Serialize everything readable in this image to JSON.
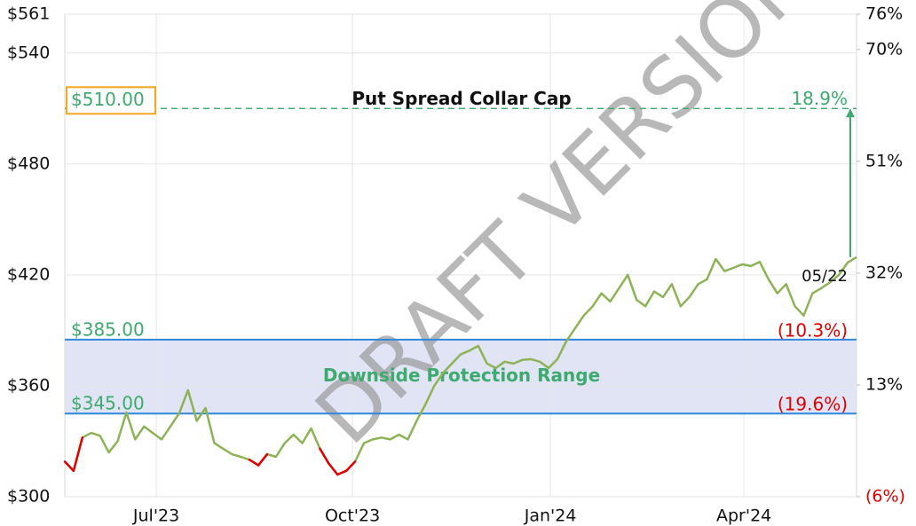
{
  "chart_data": {
    "type": "line",
    "watermark": "DRAFT VERSION",
    "series": [
      {
        "name": "Price",
        "color": "#8db356",
        "below_color": "#e00000",
        "values": [
          319,
          314,
          332,
          334.5,
          333,
          324,
          330,
          345.6,
          331,
          338,
          334.5,
          331,
          338,
          345,
          357.6,
          341,
          348,
          329,
          326,
          323,
          321.6,
          320,
          317,
          323,
          321.6,
          329,
          333.6,
          329,
          337,
          326,
          318,
          312,
          314,
          319,
          329,
          331,
          332,
          331,
          333.6,
          331,
          341,
          350,
          360,
          367,
          372,
          377,
          379,
          381.6,
          372,
          369.6,
          373,
          372,
          374,
          374.4,
          373,
          369.6,
          374.4,
          384,
          391,
          398,
          403,
          410,
          405.6,
          412.8,
          420,
          406.5,
          403,
          411,
          408,
          415,
          403,
          408,
          415,
          417.6,
          428.6,
          422,
          423.8,
          425.7,
          424.8,
          427,
          417.6,
          410,
          415,
          403,
          398,
          410,
          412.8,
          416,
          420,
          426.7,
          429.6
        ]
      }
    ],
    "last_label": "05/22",
    "xlim": [
      0,
      90
    ],
    "xticks": [
      {
        "value": 10.4,
        "label": "Jul'23"
      },
      {
        "value": 32.7,
        "label": "Oct'23"
      },
      {
        "value": 55.2,
        "label": "Jan'24"
      },
      {
        "value": 77.2,
        "label": "Apr'24"
      }
    ],
    "ylim": [
      300,
      561
    ],
    "yticks": [
      {
        "value": 300,
        "label": "$300"
      },
      {
        "value": 360,
        "label": "$360"
      },
      {
        "value": 420,
        "label": "$420"
      },
      {
        "value": 480,
        "label": "$480"
      },
      {
        "value": 540,
        "label": "$540"
      },
      {
        "value": 561,
        "label": "$561"
      }
    ],
    "y2lim": [
      -6,
      76
    ],
    "y2ticks": [
      {
        "value": -6,
        "label": "(6%)"
      },
      {
        "value": 13,
        "label": "13%"
      },
      {
        "value": 32,
        "label": "32%"
      },
      {
        "value": 51,
        "label": "51%"
      },
      {
        "value": 70,
        "label": "70%"
      },
      {
        "value": 76,
        "label": "76%"
      }
    ],
    "grid": true,
    "cap": {
      "name": "Put Spread Collar Cap",
      "value": 510,
      "label": "$510.00",
      "pct_label": "18.9%",
      "color": "#3daa6e",
      "box_color": "#f5a623"
    },
    "range": {
      "name": "Downside Protection Range",
      "color": "#2f86dd",
      "fill": "#e0e4f4",
      "text_color": "#3daa6e",
      "pct_color": "#e00000",
      "high": {
        "value": 385,
        "label": "$385.00",
        "pct_label": "(10.3%)"
      },
      "low": {
        "value": 345,
        "label": "$345.00",
        "pct_label": "(19.6%)"
      }
    }
  }
}
